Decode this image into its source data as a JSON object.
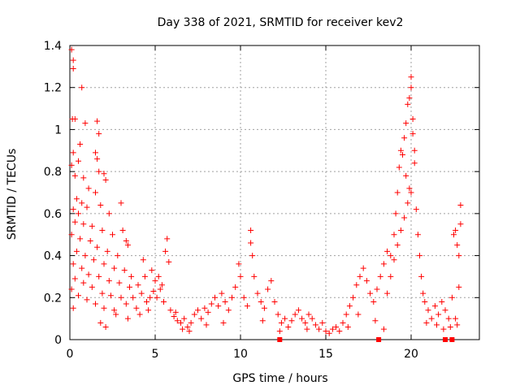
{
  "chart_data": {
    "type": "scatter",
    "title": "Day 338 of 2021, SRMTID for receiver kev2",
    "xlabel": "GPS time / hours",
    "ylabel": "SRMTID / TECUs",
    "xlim": [
      0,
      24
    ],
    "ylim": [
      0,
      1.4
    ],
    "grid": true,
    "marker": "+",
    "marker_color": "#ff0000",
    "xticks": [
      0,
      5,
      10,
      15,
      20
    ],
    "xtick_labels": [
      "0",
      "5",
      "10",
      "15",
      "20"
    ],
    "yticks": [
      0,
      0.2,
      0.4,
      0.6,
      0.8,
      1,
      1.2,
      1.4
    ],
    "ytick_labels": [
      "0",
      "0.2",
      "0.4",
      "0.6",
      "0.8",
      "1",
      "1.2",
      "1.4"
    ],
    "series": [
      {
        "name": "SRMTID",
        "points": [
          [
            0.1,
            1.38
          ],
          [
            0.2,
            1.33
          ],
          [
            0.2,
            1.29
          ],
          [
            0.15,
            1.05
          ],
          [
            0.3,
            1.05
          ],
          [
            0.7,
            1.2
          ],
          [
            0.9,
            1.03
          ],
          [
            0.6,
            0.93
          ],
          [
            1.6,
            1.04
          ],
          [
            1.7,
            0.98
          ],
          [
            1.5,
            0.89
          ],
          [
            1.6,
            0.86
          ],
          [
            0.2,
            0.89
          ],
          [
            0.5,
            0.85
          ],
          [
            0.1,
            0.83
          ],
          [
            0.3,
            0.78
          ],
          [
            0.8,
            0.77
          ],
          [
            1.1,
            0.72
          ],
          [
            1.7,
            0.8
          ],
          [
            2.0,
            0.79
          ],
          [
            2.1,
            0.76
          ],
          [
            1.5,
            0.7
          ],
          [
            0.4,
            0.67
          ],
          [
            0.7,
            0.65
          ],
          [
            0.2,
            0.62
          ],
          [
            0.5,
            0.6
          ],
          [
            1.0,
            0.63
          ],
          [
            1.8,
            0.64
          ],
          [
            2.3,
            0.6
          ],
          [
            3.0,
            0.65
          ],
          [
            0.3,
            0.56
          ],
          [
            0.8,
            0.55
          ],
          [
            1.3,
            0.54
          ],
          [
            1.9,
            0.52
          ],
          [
            2.5,
            0.5
          ],
          [
            3.1,
            0.52
          ],
          [
            3.3,
            0.47
          ],
          [
            0.1,
            0.5
          ],
          [
            0.6,
            0.48
          ],
          [
            1.2,
            0.47
          ],
          [
            1.6,
            0.44
          ],
          [
            2.2,
            0.42
          ],
          [
            2.8,
            0.4
          ],
          [
            3.4,
            0.45
          ],
          [
            0.4,
            0.42
          ],
          [
            0.9,
            0.4
          ],
          [
            1.4,
            0.38
          ],
          [
            2.0,
            0.36
          ],
          [
            2.6,
            0.34
          ],
          [
            3.2,
            0.33
          ],
          [
            3.6,
            0.3
          ],
          [
            0.2,
            0.36
          ],
          [
            0.7,
            0.34
          ],
          [
            1.1,
            0.31
          ],
          [
            1.7,
            0.3
          ],
          [
            2.3,
            0.28
          ],
          [
            2.9,
            0.27
          ],
          [
            3.5,
            0.25
          ],
          [
            4.0,
            0.26
          ],
          [
            0.3,
            0.29
          ],
          [
            0.8,
            0.27
          ],
          [
            1.3,
            0.25
          ],
          [
            1.9,
            0.22
          ],
          [
            2.4,
            0.21
          ],
          [
            3.0,
            0.2
          ],
          [
            3.7,
            0.2
          ],
          [
            4.2,
            0.22
          ],
          [
            0.1,
            0.24
          ],
          [
            0.5,
            0.21
          ],
          [
            1.0,
            0.19
          ],
          [
            1.5,
            0.17
          ],
          [
            2.0,
            0.15
          ],
          [
            2.6,
            0.14
          ],
          [
            3.3,
            0.17
          ],
          [
            3.9,
            0.15
          ],
          [
            4.5,
            0.18
          ],
          [
            0.2,
            0.15
          ],
          [
            1.8,
            0.08
          ],
          [
            2.1,
            0.06
          ],
          [
            2.7,
            0.12
          ],
          [
            3.4,
            0.1
          ],
          [
            4.1,
            0.12
          ],
          [
            4.6,
            0.14
          ],
          [
            5.0,
            0.28
          ],
          [
            5.2,
            0.3
          ],
          [
            5.4,
            0.26
          ],
          [
            5.6,
            0.42
          ],
          [
            5.7,
            0.48
          ],
          [
            5.8,
            0.37
          ],
          [
            4.8,
            0.33
          ],
          [
            4.4,
            0.3
          ],
          [
            4.3,
            0.38
          ],
          [
            5.1,
            0.2
          ],
          [
            5.5,
            0.18
          ],
          [
            5.9,
            0.14
          ],
          [
            6.1,
            0.11
          ],
          [
            6.3,
            0.09
          ],
          [
            6.5,
            0.08
          ],
          [
            6.7,
            0.1
          ],
          [
            6.9,
            0.06
          ],
          [
            7.1,
            0.08
          ],
          [
            7.3,
            0.12
          ],
          [
            7.5,
            0.14
          ],
          [
            7.7,
            0.1
          ],
          [
            7.9,
            0.15
          ],
          [
            8.1,
            0.13
          ],
          [
            8.3,
            0.17
          ],
          [
            8.5,
            0.2
          ],
          [
            8.7,
            0.16
          ],
          [
            8.9,
            0.22
          ],
          [
            9.1,
            0.18
          ],
          [
            9.3,
            0.14
          ],
          [
            9.5,
            0.2
          ],
          [
            9.7,
            0.25
          ],
          [
            9.9,
            0.36
          ],
          [
            10.0,
            0.3
          ],
          [
            10.2,
            0.2
          ],
          [
            10.4,
            0.16
          ],
          [
            10.6,
            0.52
          ],
          [
            10.6,
            0.46
          ],
          [
            10.7,
            0.4
          ],
          [
            10.8,
            0.3
          ],
          [
            11.0,
            0.22
          ],
          [
            11.2,
            0.18
          ],
          [
            11.4,
            0.15
          ],
          [
            11.6,
            0.24
          ],
          [
            11.8,
            0.28
          ],
          [
            12.0,
            0.18
          ],
          [
            12.2,
            0.12
          ],
          [
            12.4,
            0.08
          ],
          [
            12.6,
            0.1
          ],
          [
            12.8,
            0.06
          ],
          [
            13.0,
            0.09
          ],
          [
            13.2,
            0.12
          ],
          [
            13.4,
            0.14
          ],
          [
            13.6,
            0.1
          ],
          [
            13.8,
            0.08
          ],
          [
            14.0,
            0.12
          ],
          [
            14.2,
            0.1
          ],
          [
            14.4,
            0.07
          ],
          [
            14.6,
            0.05
          ],
          [
            14.8,
            0.08
          ],
          [
            15.0,
            0.04
          ],
          [
            15.2,
            0.03
          ],
          [
            15.4,
            0.05
          ],
          [
            15.6,
            0.06
          ],
          [
            15.8,
            0.04
          ],
          [
            16.0,
            0.08
          ],
          [
            16.2,
            0.12
          ],
          [
            16.4,
            0.16
          ],
          [
            16.6,
            0.2
          ],
          [
            16.8,
            0.26
          ],
          [
            17.0,
            0.3
          ],
          [
            17.2,
            0.34
          ],
          [
            17.4,
            0.28
          ],
          [
            17.6,
            0.22
          ],
          [
            17.8,
            0.18
          ],
          [
            18.0,
            0.24
          ],
          [
            18.2,
            0.3
          ],
          [
            18.4,
            0.36
          ],
          [
            18.6,
            0.42
          ],
          [
            18.8,
            0.4
          ],
          [
            19.0,
            0.5
          ],
          [
            19.1,
            0.6
          ],
          [
            19.2,
            0.7
          ],
          [
            19.3,
            0.82
          ],
          [
            19.4,
            0.9
          ],
          [
            19.5,
            0.88
          ],
          [
            19.6,
            0.96
          ],
          [
            19.7,
            1.03
          ],
          [
            19.8,
            1.12
          ],
          [
            19.9,
            1.15
          ],
          [
            20.0,
            1.25
          ],
          [
            20.0,
            1.2
          ],
          [
            20.1,
            1.05
          ],
          [
            20.1,
            0.98
          ],
          [
            20.2,
            0.9
          ],
          [
            20.2,
            0.84
          ],
          [
            19.9,
            0.72
          ],
          [
            19.8,
            0.65
          ],
          [
            19.6,
            0.58
          ],
          [
            19.4,
            0.52
          ],
          [
            19.2,
            0.45
          ],
          [
            19.0,
            0.38
          ],
          [
            18.8,
            0.3
          ],
          [
            18.6,
            0.22
          ],
          [
            19.7,
            0.78
          ],
          [
            20.0,
            0.7
          ],
          [
            20.3,
            0.62
          ],
          [
            20.4,
            0.5
          ],
          [
            20.5,
            0.4
          ],
          [
            20.6,
            0.3
          ],
          [
            20.7,
            0.22
          ],
          [
            20.8,
            0.18
          ],
          [
            21.0,
            0.14
          ],
          [
            21.2,
            0.1
          ],
          [
            21.4,
            0.16
          ],
          [
            21.6,
            0.12
          ],
          [
            21.8,
            0.18
          ],
          [
            22.0,
            0.14
          ],
          [
            22.2,
            0.1
          ],
          [
            22.3,
            0.06
          ],
          [
            22.4,
            0.2
          ],
          [
            22.5,
            0.5
          ],
          [
            22.6,
            0.52
          ],
          [
            22.7,
            0.45
          ],
          [
            22.8,
            0.4
          ],
          [
            22.9,
            0.55
          ],
          [
            22.9,
            0.64
          ],
          [
            22.8,
            0.25
          ],
          [
            22.7,
            0.07
          ],
          [
            22.6,
            0.1
          ],
          [
            21.9,
            0.05
          ],
          [
            21.5,
            0.07
          ],
          [
            20.9,
            0.08
          ],
          [
            18.4,
            0.05
          ],
          [
            17.9,
            0.09
          ],
          [
            16.9,
            0.12
          ],
          [
            16.3,
            0.06
          ],
          [
            13.9,
            0.05
          ],
          [
            12.3,
            0.04
          ],
          [
            11.3,
            0.09
          ],
          [
            9.0,
            0.08
          ],
          [
            8.0,
            0.07
          ],
          [
            7.0,
            0.04
          ],
          [
            6.6,
            0.05
          ],
          [
            6.2,
            0.13
          ],
          [
            5.3,
            0.24
          ],
          [
            4.7,
            0.2
          ],
          [
            4.9,
            0.23
          ]
        ]
      }
    ],
    "axis_markers": {
      "description": "small filled squares on the x-axis",
      "x": [
        12.3,
        18.1,
        22.0,
        22.4
      ]
    }
  }
}
